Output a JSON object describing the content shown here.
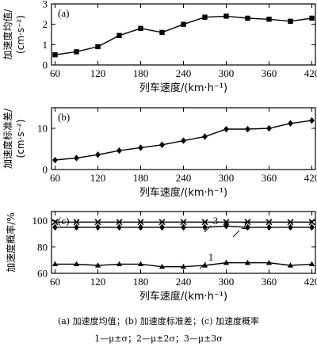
{
  "chart_data": [
    {
      "type": "line",
      "panel_label": "(a)",
      "xlabel": "列车速度/(km·h⁻¹)",
      "ylabel": "加速度均值/",
      "ylabel_unit": "(cm·s⁻²)",
      "x": [
        60,
        90,
        120,
        150,
        180,
        210,
        240,
        270,
        300,
        330,
        360,
        390,
        420
      ],
      "series": [
        {
          "values": [
            0.5,
            0.65,
            0.9,
            1.45,
            1.8,
            1.6,
            2.0,
            2.35,
            2.4,
            2.3,
            2.25,
            2.15,
            2.3
          ],
          "marker": "square"
        }
      ],
      "xticks": [
        60,
        120,
        180,
        240,
        300,
        360,
        420
      ],
      "yticks": [
        0,
        1,
        2,
        3
      ],
      "xlim": [
        55,
        425
      ],
      "ylim": [
        0,
        3
      ],
      "grid": false
    },
    {
      "type": "line",
      "panel_label": "(b)",
      "xlabel": "列车速度/(km·h⁻¹)",
      "ylabel": "加速度标准差/",
      "ylabel_unit": "(cm·s⁻²)",
      "x": [
        60,
        90,
        120,
        150,
        180,
        210,
        240,
        270,
        300,
        330,
        360,
        390,
        420
      ],
      "series": [
        {
          "values": [
            2.3,
            2.8,
            3.6,
            4.6,
            5.3,
            6.0,
            7.0,
            8.0,
            9.8,
            9.8,
            10.0,
            11.2,
            11.9
          ],
          "marker": "diamond"
        }
      ],
      "xticks": [
        60,
        120,
        180,
        240,
        300,
        360,
        420
      ],
      "yticks": [
        0,
        10
      ],
      "xlim": [
        55,
        425
      ],
      "ylim": [
        0,
        15
      ],
      "grid": false
    },
    {
      "type": "line",
      "panel_label": "(c)",
      "xlabel": "列车速度/(km·h⁻¹)",
      "ylabel": "加速度概率/%",
      "x": [
        60,
        90,
        120,
        150,
        180,
        210,
        240,
        270,
        300,
        330,
        360,
        390,
        420
      ],
      "series": [
        {
          "name": "1",
          "values": [
            67,
            67,
            66,
            67,
            67,
            65,
            65,
            66,
            68,
            68,
            68,
            66,
            67
          ],
          "marker": "triangle"
        },
        {
          "name": "2",
          "values": [
            95,
            95,
            95,
            95,
            95,
            95,
            95,
            95,
            96,
            95,
            95,
            95,
            95
          ],
          "marker": "diamond"
        },
        {
          "name": "3",
          "values": [
            99,
            99,
            99,
            99,
            99,
            99,
            99,
            99,
            99,
            99,
            99,
            99,
            99
          ],
          "marker": "x"
        }
      ],
      "xticks": [
        60,
        120,
        180,
        240,
        300,
        360,
        420
      ],
      "yticks": [
        60,
        80,
        100
      ],
      "xlim": [
        55,
        425
      ],
      "ylim": [
        60,
        107
      ],
      "grid": false
    }
  ],
  "caption": {
    "line1": "(a) 加速度均值；(b) 加速度标准差；(c) 加速度概率",
    "line2": "1—μ±σ；2—μ±2σ；3—μ±3σ"
  }
}
